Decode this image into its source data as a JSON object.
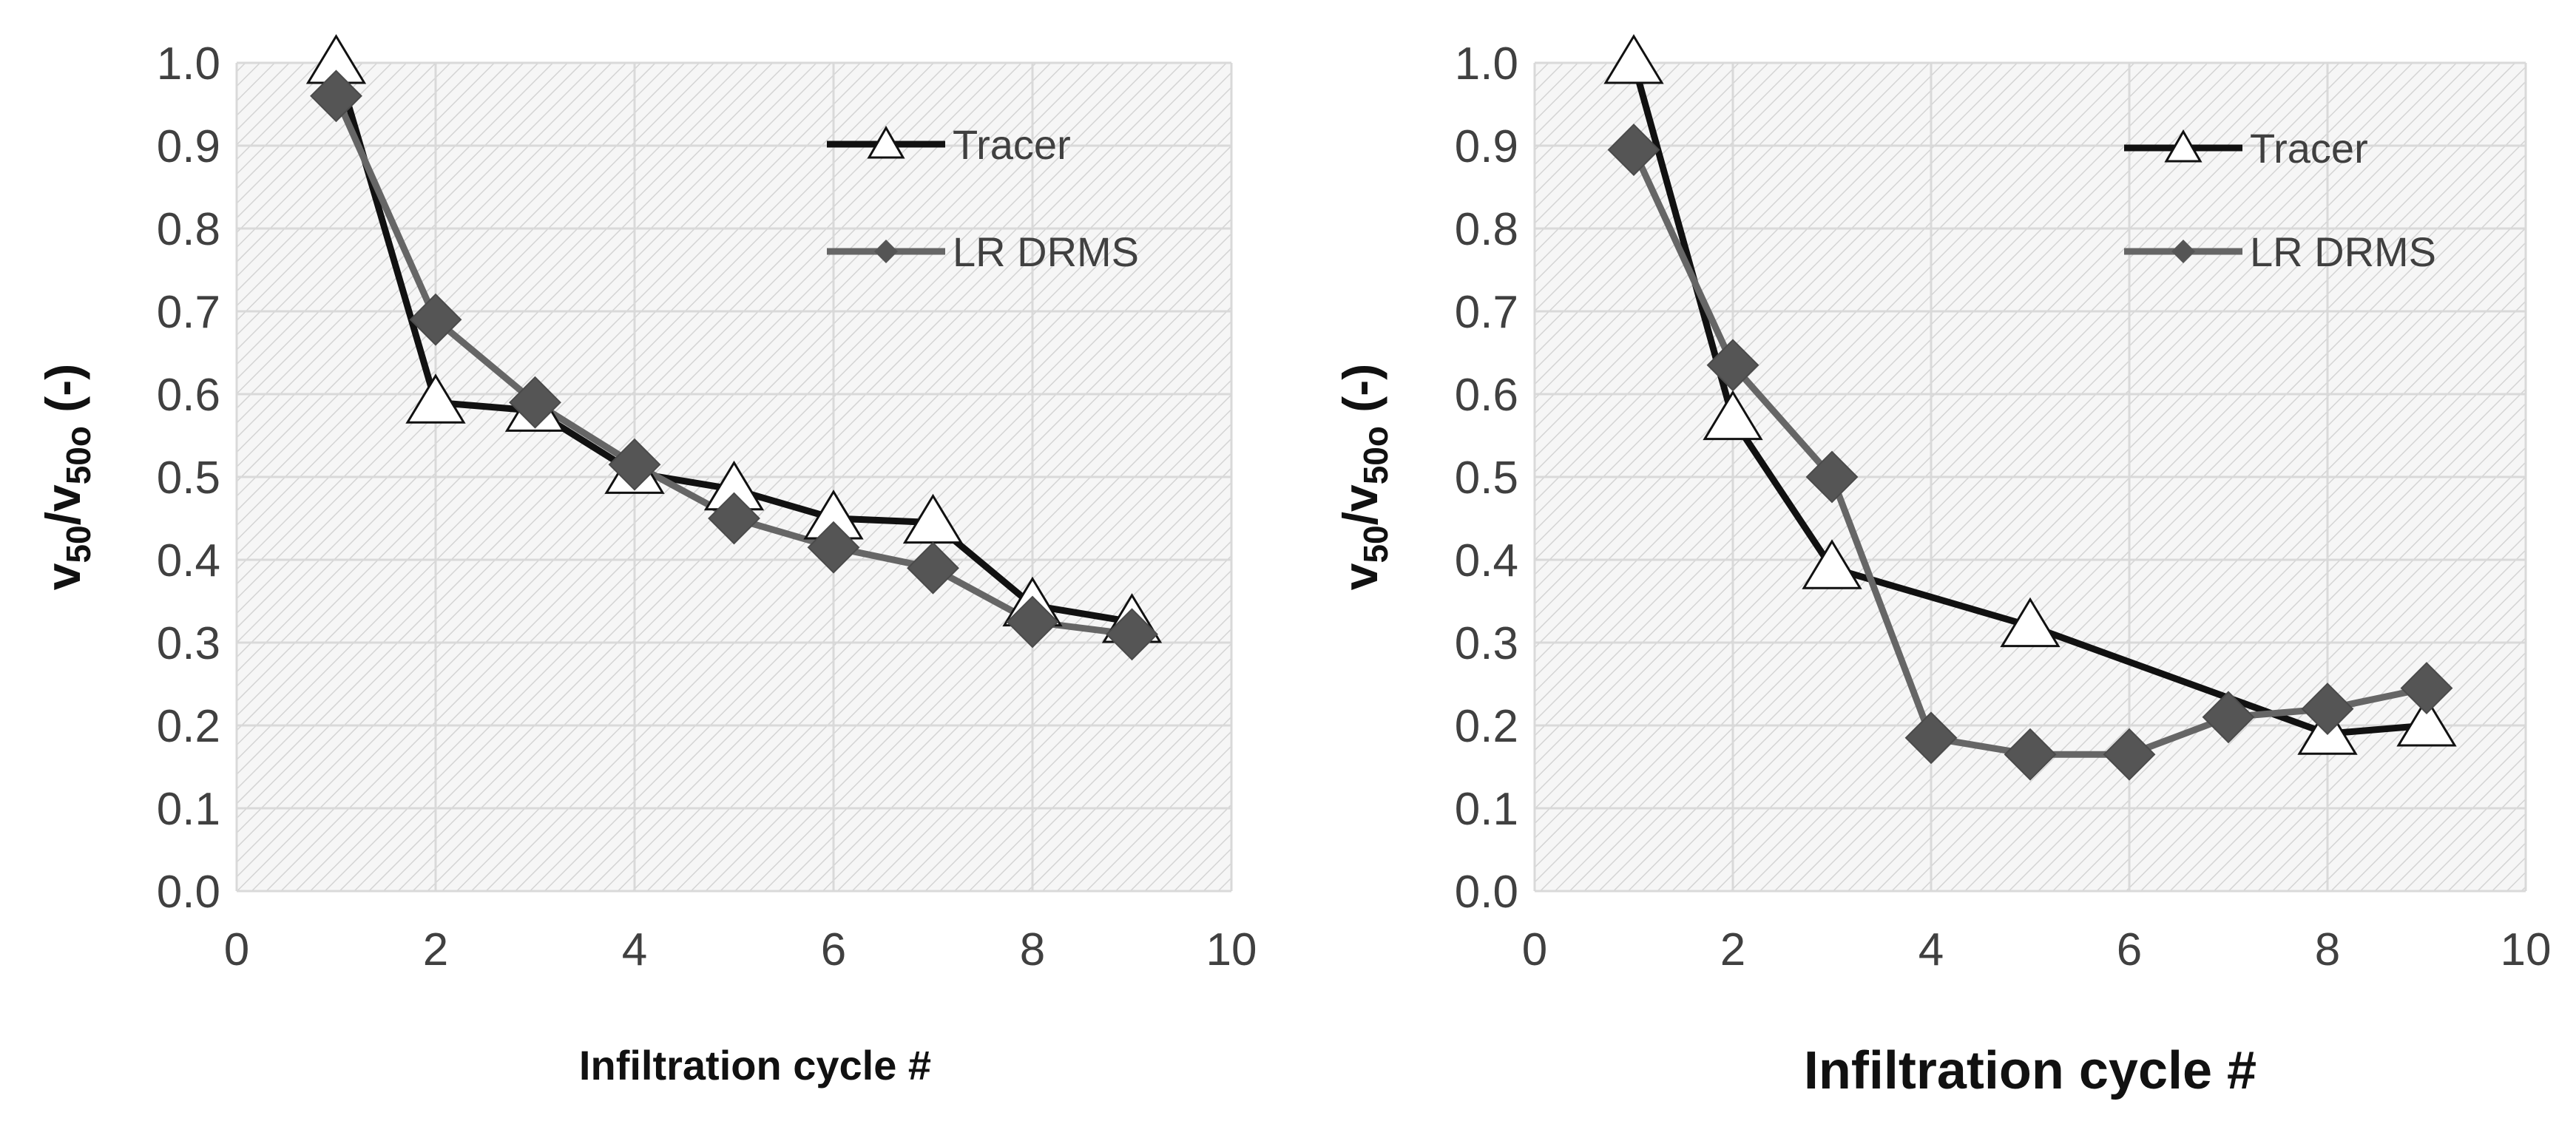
{
  "chart_data": [
    {
      "type": "line",
      "title": "",
      "xlabel": "Infiltration cycle #",
      "ylabel": "v50/v50o (-)",
      "ylabel_parts": {
        "v": "v",
        "sub50": "50",
        "slash": "/",
        "sub50o": "50o",
        "unit": " (-)"
      },
      "xlim": [
        0,
        10
      ],
      "ylim": [
        0,
        1.0
      ],
      "xticks": [
        "0",
        "2",
        "4",
        "6",
        "8",
        "10"
      ],
      "yticks": [
        "0.0",
        "0.1",
        "0.2",
        "0.3",
        "0.4",
        "0.5",
        "0.6",
        "0.7",
        "0.8",
        "0.9",
        "1.0"
      ],
      "legend_position": "top-right",
      "series": [
        {
          "name": "Tracer",
          "marker": "open-triangle",
          "color": "#111111",
          "x": [
            1,
            2,
            3,
            4,
            5,
            6,
            7,
            8,
            9
          ],
          "y": [
            1.0,
            0.59,
            0.58,
            0.505,
            0.485,
            0.45,
            0.445,
            0.345,
            0.325
          ]
        },
        {
          "name": "LR DRMS",
          "marker": "filled-diamond",
          "color": "#666666",
          "x": [
            1,
            2,
            3,
            4,
            5,
            6,
            7,
            8,
            9
          ],
          "y": [
            0.96,
            0.69,
            0.59,
            0.515,
            0.45,
            0.415,
            0.39,
            0.325,
            0.31
          ]
        }
      ]
    },
    {
      "type": "line",
      "title": "",
      "xlabel": "Infiltration cycle #",
      "ylabel": "v50/v50o (-)",
      "ylabel_parts": {
        "v": "v",
        "sub50": "50",
        "slash": "/",
        "sub50o": "50o",
        "unit": " (-)"
      },
      "xlim": [
        0,
        10
      ],
      "ylim": [
        0,
        1.0
      ],
      "xticks": [
        "0",
        "2",
        "4",
        "6",
        "8",
        "10"
      ],
      "yticks": [
        "0.0",
        "0.1",
        "0.2",
        "0.3",
        "0.4",
        "0.5",
        "0.6",
        "0.7",
        "0.8",
        "0.9",
        "1.0"
      ],
      "legend_position": "top-right",
      "series": [
        {
          "name": "Tracer",
          "marker": "open-triangle",
          "color": "#111111",
          "x": [
            1,
            2,
            3,
            5,
            8,
            9
          ],
          "y": [
            1.0,
            0.57,
            0.39,
            0.32,
            0.19,
            0.2
          ]
        },
        {
          "name": "LR DRMS",
          "marker": "filled-diamond",
          "color": "#666666",
          "x": [
            1,
            2,
            3,
            4,
            5,
            6,
            7,
            8,
            9
          ],
          "y": [
            0.895,
            0.635,
            0.5,
            0.185,
            0.165,
            0.165,
            0.21,
            0.22,
            0.245
          ]
        }
      ]
    }
  ]
}
